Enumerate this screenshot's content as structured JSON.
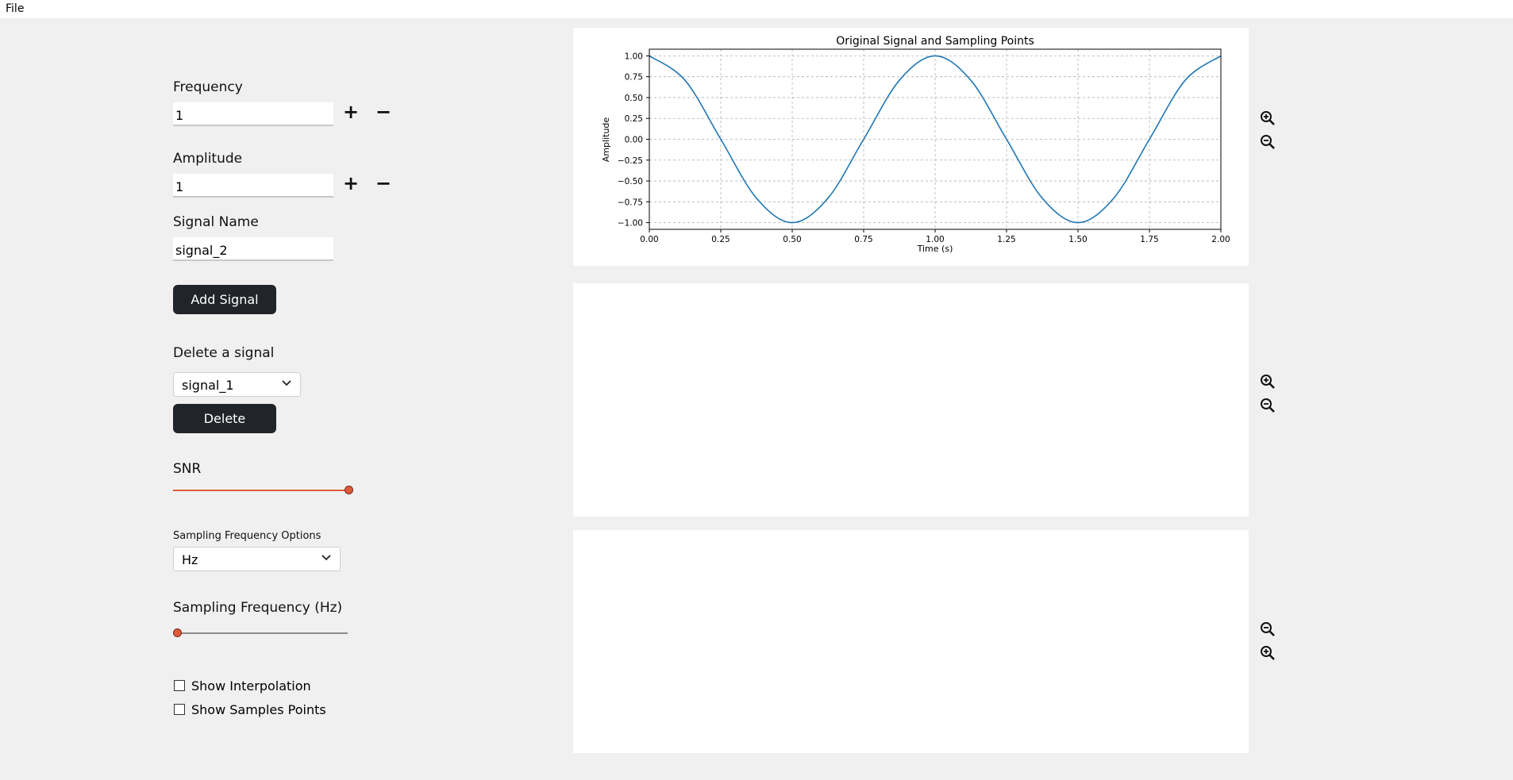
{
  "menu": {
    "file": "File"
  },
  "controls": {
    "frequency": {
      "label": "Frequency",
      "value": "1",
      "plus": "+",
      "minus": "−"
    },
    "amplitude": {
      "label": "Amplitude",
      "value": "1",
      "plus": "+",
      "minus": "−"
    },
    "signal_name": {
      "label": "Signal Name",
      "value": "signal_2"
    },
    "add_button": "Add Signal",
    "delete_section": {
      "label": "Delete a signal",
      "selected": "signal_1",
      "button": "Delete"
    },
    "snr": {
      "label": "SNR",
      "value_fraction": 1.0,
      "accent": "#e05a3a"
    },
    "sampling_options": {
      "label": "Sampling Frequency Options",
      "selected": "Hz"
    },
    "sampling_frequency": {
      "label": "Sampling Frequency (Hz)",
      "value_fraction": 0.0
    },
    "show_interpolation": {
      "label": "Show Interpolation",
      "checked": false
    },
    "show_samples": {
      "label": "Show Samples Points",
      "checked": false
    }
  },
  "icons": {
    "zoom_in": "zoom-in-icon",
    "zoom_out": "zoom-out-icon"
  },
  "chart_data": {
    "type": "line",
    "title": "Original Signal and Sampling Points",
    "xlabel": "Time (s)",
    "ylabel": "Amplitude",
    "xlim": [
      0,
      2
    ],
    "ylim": [
      -1.08,
      1.08
    ],
    "grid": true,
    "x_ticks": [
      "0.00",
      "0.25",
      "0.50",
      "0.75",
      "1.00",
      "1.25",
      "1.50",
      "1.75",
      "2.00"
    ],
    "y_ticks": [
      "1.00",
      "0.75",
      "0.50",
      "0.25",
      "0.00",
      "−0.25",
      "−0.50",
      "−0.75",
      "−1.00"
    ],
    "series": [
      {
        "color": "#1f77b4",
        "x": [
          0,
          0.125,
          0.25,
          0.375,
          0.5,
          0.625,
          0.75,
          0.875,
          1.0,
          1.125,
          1.25,
          1.375,
          1.5,
          1.625,
          1.75,
          1.875,
          2.0
        ],
        "y": [
          1,
          0.707,
          0,
          -0.707,
          -1,
          -0.707,
          0,
          0.707,
          1,
          0.707,
          0,
          -0.707,
          -1,
          -0.707,
          0,
          0.707,
          1
        ]
      }
    ]
  }
}
